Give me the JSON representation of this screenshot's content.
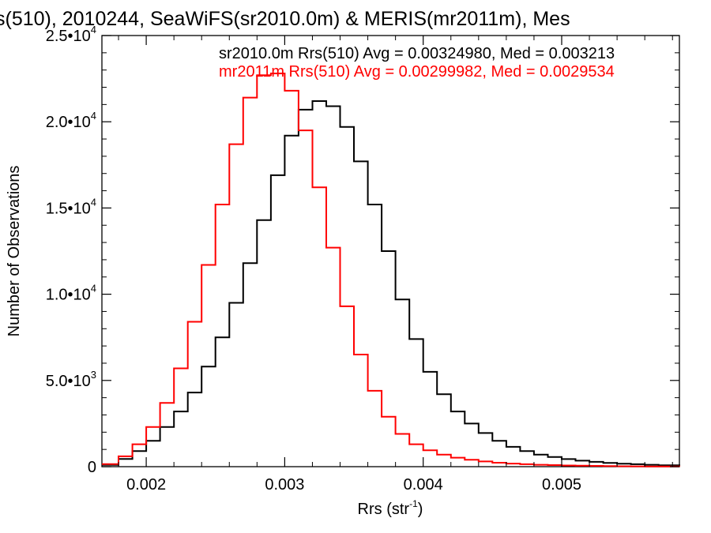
{
  "chart_data": {
    "type": "line",
    "title": "s(510), 2010244, SeaWiFS(sr2010.0m) & MERIS(mr2011m), Mes",
    "xlabel": "Rrs (str",
    "xlabel_sup": "-1",
    "xlabel_tail": ")",
    "ylabel": "Number of Observations",
    "xlim": [
      0.00168,
      0.00585
    ],
    "ylim": [
      0,
      25000
    ],
    "x_ticks": [
      {
        "value": 0.002,
        "label": "0.002"
      },
      {
        "value": 0.003,
        "label": "0.003"
      },
      {
        "value": 0.004,
        "label": "0.004"
      },
      {
        "value": 0.005,
        "label": "0.005"
      }
    ],
    "y_ticks": [
      {
        "value": 0,
        "label": "0",
        "sup": ""
      },
      {
        "value": 5000,
        "label": "5.0•10",
        "sup": "3"
      },
      {
        "value": 10000,
        "label": "1.0•10",
        "sup": "4"
      },
      {
        "value": 15000,
        "label": "1.5•10",
        "sup": "4"
      },
      {
        "value": 20000,
        "label": "2.0•10",
        "sup": "4"
      },
      {
        "value": 25000,
        "label": "2.5•10",
        "sup": "4"
      }
    ],
    "grid": false,
    "plot_style": "histogram-step",
    "annotations": [
      {
        "text": "sr2010.0m Rrs(510) Avg = 0.00324980, Med = 0.003213",
        "color": "#000000"
      },
      {
        "text": "mr2011m Rrs(510) Avg = 0.00299982, Med = 0.0029534",
        "color": "#ff0000"
      }
    ],
    "series": [
      {
        "color": "#000000",
        "x": [
          0.00168,
          0.0018,
          0.0019,
          0.002,
          0.0021,
          0.0022,
          0.0023,
          0.0024,
          0.0025,
          0.0026,
          0.0027,
          0.0028,
          0.0029,
          0.003,
          0.0031,
          0.0032,
          0.0033,
          0.0034,
          0.0035,
          0.0036,
          0.0037,
          0.0038,
          0.0039,
          0.004,
          0.0041,
          0.0042,
          0.0043,
          0.0044,
          0.0045,
          0.0046,
          0.0047,
          0.0048,
          0.0049,
          0.005,
          0.0051,
          0.0052,
          0.0053,
          0.0054,
          0.0055,
          0.0056,
          0.0057,
          0.00585
        ],
        "y": [
          100,
          450,
          900,
          1500,
          2300,
          3200,
          4300,
          5800,
          7500,
          9500,
          11800,
          14300,
          16900,
          19200,
          20700,
          21200,
          20900,
          19700,
          17700,
          15200,
          12500,
          9700,
          7400,
          5500,
          4200,
          3200,
          2500,
          1950,
          1500,
          1150,
          900,
          700,
          560,
          440,
          350,
          280,
          220,
          170,
          140,
          110,
          80,
          50
        ]
      },
      {
        "color": "#ff0000",
        "x": [
          0.00168,
          0.0018,
          0.0019,
          0.002,
          0.0021,
          0.0022,
          0.0023,
          0.0024,
          0.0025,
          0.0026,
          0.0027,
          0.0028,
          0.0029,
          0.003,
          0.0031,
          0.0032,
          0.0033,
          0.0034,
          0.0035,
          0.0036,
          0.0037,
          0.0038,
          0.0039,
          0.004,
          0.0041,
          0.0042,
          0.0043,
          0.0044,
          0.0045,
          0.0046,
          0.0047,
          0.0048,
          0.0049,
          0.005,
          0.0051,
          0.0052,
          0.0053,
          0.0054,
          0.0055,
          0.0056,
          0.0057,
          0.00585
        ],
        "y": [
          150,
          600,
          1300,
          2300,
          3700,
          5700,
          8400,
          11700,
          15200,
          18700,
          21400,
          22700,
          22800,
          21800,
          19500,
          16200,
          12700,
          9300,
          6500,
          4400,
          2900,
          1900,
          1300,
          950,
          700,
          520,
          400,
          300,
          230,
          180,
          140,
          110,
          90,
          70,
          55,
          45,
          35,
          25,
          20,
          15,
          10,
          5
        ]
      }
    ]
  }
}
